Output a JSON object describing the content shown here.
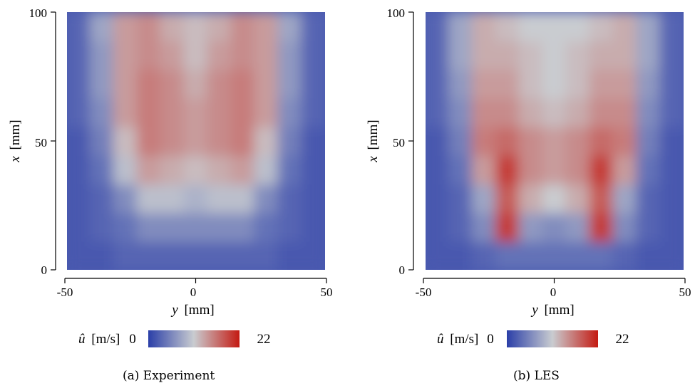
{
  "chart_data": [
    {
      "type": "heatmap",
      "caption": "(a) Experiment",
      "xlabel_var": "y",
      "xlabel_unit": "[mm]",
      "ylabel_var": "x",
      "ylabel_unit": "[mm]",
      "xlim": [
        -50,
        50
      ],
      "ylim": [
        0,
        100
      ],
      "xticks": [
        "-50",
        "0",
        "50"
      ],
      "yticks": [
        "0",
        "50",
        "100"
      ],
      "colorbar": {
        "var": "û",
        "unit": "[m/s]",
        "min": "0",
        "max": "22",
        "colors": [
          "#2b3fa8",
          "#c9ccd0",
          "#c41a12"
        ]
      },
      "values": [
        [
          2,
          2,
          3,
          3,
          3,
          3,
          3,
          3,
          3,
          2,
          2
        ],
        [
          2,
          3,
          4,
          6,
          6,
          6,
          6,
          6,
          4,
          3,
          2
        ],
        [
          2,
          3,
          6,
          10,
          10,
          9,
          10,
          10,
          6,
          3,
          2
        ],
        [
          2,
          4,
          10,
          14,
          13,
          12,
          13,
          14,
          10,
          4,
          2
        ],
        [
          2,
          5,
          12,
          16,
          15,
          14,
          15,
          16,
          12,
          5,
          2
        ],
        [
          3,
          6,
          14,
          16,
          15,
          14,
          15,
          16,
          14,
          6,
          3
        ],
        [
          3,
          7,
          14,
          16,
          15,
          13,
          15,
          16,
          14,
          7,
          3
        ],
        [
          3,
          7,
          14,
          15,
          14,
          12,
          14,
          15,
          14,
          7,
          3
        ],
        [
          3,
          8,
          14,
          15,
          13,
          12,
          13,
          15,
          14,
          8,
          3
        ]
      ]
    },
    {
      "type": "heatmap",
      "caption": "(b) LES",
      "xlabel_var": "y",
      "xlabel_unit": "[mm]",
      "ylabel_var": "x",
      "ylabel_unit": "[mm]",
      "xlim": [
        -50,
        50
      ],
      "ylim": [
        0,
        100
      ],
      "xticks": [
        "-50",
        "0",
        "50"
      ],
      "yticks": [
        "0",
        "50",
        "100"
      ],
      "colorbar": {
        "var": "û",
        "unit": "[m/s]",
        "min": "0",
        "max": "22",
        "colors": [
          "#2b3fa8",
          "#c9ccd0",
          "#c41a12"
        ]
      },
      "values": [
        [
          2,
          2,
          3,
          4,
          4,
          4,
          4,
          4,
          3,
          2,
          2
        ],
        [
          2,
          3,
          6,
          20,
          7,
          6,
          7,
          20,
          6,
          3,
          2
        ],
        [
          2,
          3,
          8,
          18,
          13,
          11,
          13,
          18,
          8,
          3,
          2
        ],
        [
          2,
          4,
          14,
          20,
          15,
          14,
          15,
          20,
          14,
          4,
          2
        ],
        [
          2,
          5,
          16,
          17,
          15,
          14,
          15,
          17,
          16,
          5,
          2
        ],
        [
          3,
          6,
          15,
          15,
          13,
          12,
          13,
          15,
          15,
          6,
          3
        ],
        [
          3,
          7,
          14,
          14,
          12,
          11,
          12,
          14,
          14,
          7,
          3
        ],
        [
          3,
          8,
          13,
          13,
          12,
          11,
          12,
          13,
          13,
          8,
          3
        ],
        [
          3,
          8,
          13,
          12,
          11,
          11,
          11,
          12,
          13,
          8,
          3
        ]
      ]
    }
  ]
}
